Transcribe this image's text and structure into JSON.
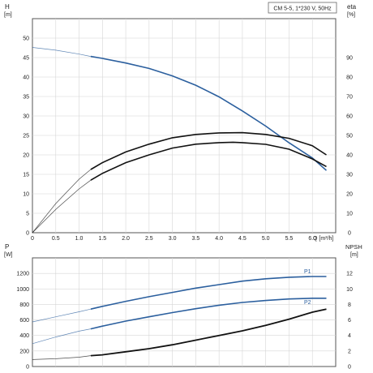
{
  "chart_data": [
    {
      "type": "line",
      "title": "CM 5-5, 1*230 V, 50Hz",
      "xlabel": "Q",
      "x_unit": "[m³/h]",
      "ylabel": "H",
      "y_unit": "[m]",
      "y2label": "eta",
      "y2_unit": "[%]",
      "xlim": [
        0,
        6.5
      ],
      "ylim": [
        0,
        55
      ],
      "y2lim": [
        0,
        110
      ],
      "grid": true,
      "x_ticks": [
        "0",
        "0.5",
        "1.0",
        "1.5",
        "2.0",
        "2.5",
        "3.0",
        "3.5",
        "4.0",
        "4.5",
        "5.0",
        "5.5",
        "6.0"
      ],
      "y_ticks": [
        "0",
        "5",
        "10",
        "15",
        "20",
        "25",
        "30",
        "35",
        "40",
        "45",
        "50"
      ],
      "y2_ticks": [
        "0",
        "10",
        "20",
        "30",
        "40",
        "50",
        "60",
        "70",
        "80",
        "90"
      ],
      "series": [
        {
          "axis": "left",
          "color": "#2b5f9e",
          "x": [
            0,
            0.5,
            1.0,
            1.25,
            1.5,
            2.0,
            2.5,
            3.0,
            3.5,
            4.0,
            4.5,
            5.0,
            5.5,
            6.0,
            6.3
          ],
          "values": [
            47.6,
            46.9,
            45.9,
            45.3,
            44.8,
            43.6,
            42.2,
            40.3,
            37.9,
            34.9,
            31.3,
            27.4,
            23.1,
            19.2,
            16.0
          ]
        },
        {
          "axis": "right",
          "color": "#111111",
          "x": [
            0,
            0.5,
            1.0,
            1.25,
            1.5,
            2.0,
            2.5,
            3.0,
            3.5,
            4.0,
            4.3,
            4.5,
            5.0,
            5.5,
            6.0,
            6.3
          ],
          "values": [
            0,
            12.0,
            22.5,
            27.0,
            30.5,
            36.0,
            40.0,
            43.5,
            45.5,
            46.3,
            46.5,
            46.3,
            45.4,
            42.9,
            37.9,
            34.0
          ]
        },
        {
          "axis": "right",
          "color": "#111111",
          "x": [
            0,
            0.5,
            1.0,
            1.25,
            1.5,
            2.0,
            2.5,
            3.0,
            3.5,
            4.0,
            4.5,
            5.0,
            5.5,
            6.0,
            6.3
          ],
          "values": [
            0,
            15.0,
            27.5,
            32.5,
            36.0,
            41.5,
            45.5,
            48.8,
            50.5,
            51.3,
            51.4,
            50.5,
            48.5,
            44.7,
            40.0
          ]
        }
      ]
    },
    {
      "type": "line",
      "xlabel": "",
      "ylabel": "P",
      "y_unit": "[W]",
      "y2label": "NPSH",
      "y2_unit": "[m]",
      "xlim": [
        0,
        6.5
      ],
      "ylim": [
        0,
        1400
      ],
      "y2lim": [
        0,
        14
      ],
      "grid": true,
      "y_ticks": [
        "0",
        "200",
        "400",
        "600",
        "800",
        "1000",
        "1200"
      ],
      "y2_ticks": [
        "0",
        "2",
        "4",
        "6",
        "8",
        "10",
        "12"
      ],
      "series": [
        {
          "name": "P1",
          "axis": "left",
          "color": "#2b5f9e",
          "x": [
            0,
            0.5,
            1.0,
            1.25,
            1.5,
            2.0,
            2.5,
            3.0,
            3.5,
            4.0,
            4.5,
            5.0,
            5.5,
            6.0,
            6.3
          ],
          "values": [
            575,
            640,
            705,
            740,
            775,
            840,
            900,
            955,
            1010,
            1055,
            1100,
            1130,
            1150,
            1160,
            1160
          ]
        },
        {
          "name": "P2",
          "axis": "left",
          "color": "#2b5f9e",
          "x": [
            0,
            0.5,
            1.0,
            1.25,
            1.5,
            2.0,
            2.5,
            3.0,
            3.5,
            4.0,
            4.5,
            5.0,
            5.5,
            6.0,
            6.3
          ],
          "values": [
            295,
            380,
            455,
            485,
            520,
            585,
            640,
            695,
            745,
            790,
            825,
            850,
            870,
            880,
            880
          ]
        },
        {
          "axis": "right",
          "color": "#111111",
          "x": [
            0,
            0.5,
            1.0,
            1.25,
            1.5,
            2.0,
            2.5,
            3.0,
            3.5,
            4.0,
            4.5,
            5.0,
            5.5,
            6.0,
            6.3
          ],
          "values": [
            0.9,
            1.0,
            1.2,
            1.4,
            1.5,
            1.9,
            2.3,
            2.8,
            3.4,
            4.0,
            4.6,
            5.3,
            6.1,
            7.0,
            7.4
          ]
        }
      ]
    }
  ]
}
